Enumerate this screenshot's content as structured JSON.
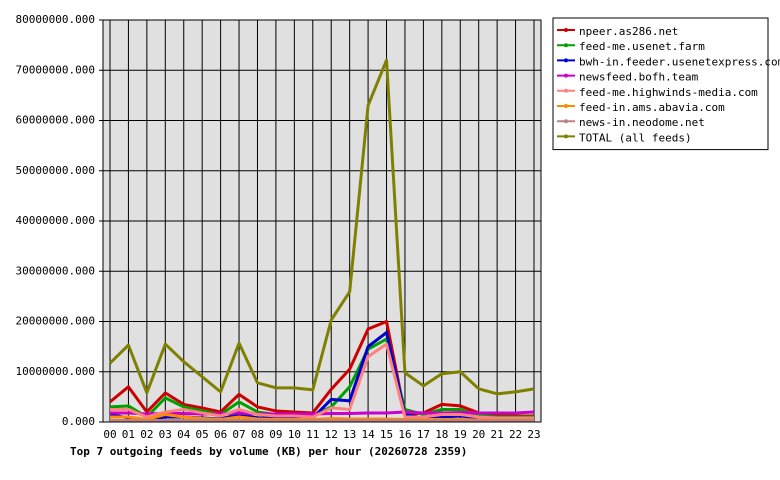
{
  "chart_data": {
    "type": "line",
    "title": "Top 7 outgoing feeds by volume (KB) per hour (20260728 2359)",
    "categories": [
      "00",
      "01",
      "02",
      "03",
      "04",
      "05",
      "06",
      "07",
      "08",
      "09",
      "10",
      "11",
      "12",
      "13",
      "14",
      "15",
      "16",
      "17",
      "18",
      "19",
      "20",
      "21",
      "22",
      "23"
    ],
    "ylim": [
      0,
      80000000
    ],
    "yticks": [
      {
        "value": 0,
        "label": "0.000"
      },
      {
        "value": 10000000,
        "label": "10000000.000"
      },
      {
        "value": 20000000,
        "label": "20000000.000"
      },
      {
        "value": 30000000,
        "label": "30000000.000"
      },
      {
        "value": 40000000,
        "label": "40000000.000"
      },
      {
        "value": 50000000,
        "label": "50000000.000"
      },
      {
        "value": 60000000,
        "label": "60000000.000"
      },
      {
        "value": 70000000,
        "label": "70000000.000"
      },
      {
        "value": 80000000,
        "label": "80000000.000"
      }
    ],
    "grid": true,
    "legend": "right",
    "series": [
      {
        "name": "npeer.as286.net",
        "color": "#cc0000",
        "values": [
          4000000,
          7000000,
          2000000,
          5800000,
          3500000,
          2800000,
          2000000,
          5500000,
          3000000,
          2200000,
          2000000,
          1800000,
          6500000,
          10500000,
          18500000,
          20000000,
          1500000,
          1800000,
          3500000,
          3200000,
          1800000,
          1500000,
          1200000,
          1200000
        ]
      },
      {
        "name": "feed-me.usenet.farm",
        "color": "#00a000",
        "values": [
          3000000,
          3200000,
          1000000,
          4800000,
          3000000,
          2200000,
          1500000,
          4000000,
          2000000,
          1500000,
          1500000,
          1300000,
          3000000,
          7000000,
          14500000,
          16500000,
          2500000,
          1500000,
          2500000,
          2500000,
          1300000,
          1000000,
          1000000,
          1000000
        ]
      },
      {
        "name": "bwh-in.feeder.usenetexpress.com",
        "color": "#0000cc",
        "values": [
          1500000,
          800000,
          500000,
          1000000,
          1000000,
          800000,
          600000,
          1500000,
          800000,
          800000,
          800000,
          800000,
          4500000,
          4200000,
          15000000,
          17800000,
          1500000,
          800000,
          1000000,
          1200000,
          800000,
          500000,
          500000,
          500000
        ]
      },
      {
        "name": "newsfeed.bofh.team",
        "color": "#cc00cc",
        "values": [
          1800000,
          1800000,
          1600000,
          1700000,
          1700000,
          1600000,
          1600000,
          1800000,
          1600000,
          1600000,
          1600000,
          1600000,
          1700000,
          1700000,
          1800000,
          1800000,
          2000000,
          1800000,
          1800000,
          1900000,
          1800000,
          1800000,
          1800000,
          2000000
        ]
      },
      {
        "name": "feed-me.highwinds-media.com",
        "color": "#ff8080",
        "values": [
          2500000,
          2500000,
          1000000,
          2000000,
          2500000,
          1800000,
          1200000,
          2500000,
          1500000,
          1200000,
          1200000,
          1000000,
          2800000,
          2500000,
          13000000,
          15500000,
          1000000,
          1000000,
          1500000,
          1500000,
          1000000,
          800000,
          800000,
          800000
        ]
      },
      {
        "name": "feed-in.ams.abavia.com",
        "color": "#ff8c00",
        "values": [
          1000000,
          1000000,
          500000,
          1500000,
          1000000,
          700000,
          500000,
          1000000,
          600000,
          500000,
          500000,
          500000,
          700000,
          600000,
          600000,
          600000,
          500000,
          500000,
          500000,
          500000,
          400000,
          400000,
          400000,
          400000
        ]
      },
      {
        "name": "news-in.neodome.net",
        "color": "#c08080",
        "values": [
          300000,
          300000,
          300000,
          300000,
          300000,
          300000,
          300000,
          300000,
          300000,
          300000,
          300000,
          300000,
          300000,
          300000,
          300000,
          300000,
          300000,
          300000,
          300000,
          300000,
          300000,
          300000,
          300000,
          300000
        ]
      },
      {
        "name": "TOTAL (all feeds)",
        "color": "#808000",
        "values": [
          11700000,
          15300000,
          5800000,
          15500000,
          12000000,
          9000000,
          6000000,
          15700000,
          7800000,
          6800000,
          6800000,
          6400000,
          20300000,
          25900000,
          63000000,
          72000000,
          9800000,
          7200000,
          9600000,
          10000000,
          6600000,
          5600000,
          6000000,
          6600000
        ]
      }
    ]
  }
}
